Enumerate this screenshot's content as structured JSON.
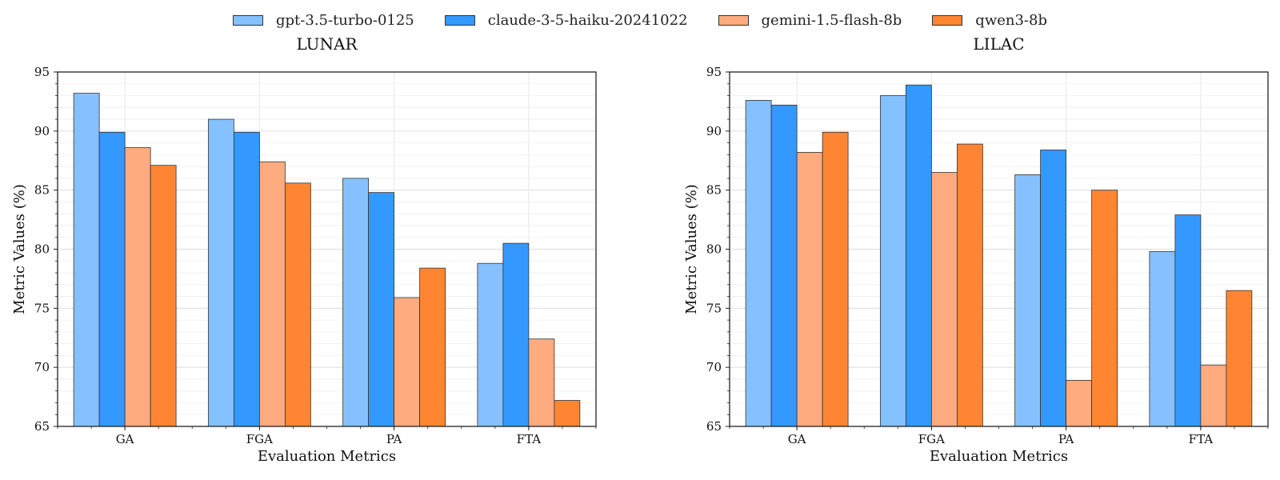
{
  "chart_data": [
    {
      "type": "bar",
      "title": "LUNAR",
      "xlabel": "Evaluation Metrics",
      "ylabel": "Metric Values (%)",
      "ylim": [
        65,
        95
      ],
      "yticks": [
        65,
        70,
        75,
        80,
        85,
        90,
        95
      ],
      "categories": [
        "GA",
        "FGA",
        "PA",
        "FTA"
      ],
      "grid": true,
      "series": [
        {
          "name": "gpt-3.5-turbo-0125",
          "values": [
            93.2,
            91.0,
            86.0,
            78.8
          ]
        },
        {
          "name": "claude-3-5-haiku-20241022",
          "values": [
            89.9,
            89.9,
            84.8,
            80.5
          ]
        },
        {
          "name": "gemini-1.5-flash-8b",
          "values": [
            88.6,
            87.4,
            75.9,
            72.4
          ]
        },
        {
          "name": "qwen3-8b",
          "values": [
            87.1,
            85.6,
            78.4,
            67.2
          ]
        }
      ]
    },
    {
      "type": "bar",
      "title": "LILAC",
      "xlabel": "Evaluation Metrics",
      "ylabel": "Metric Values (%)",
      "ylim": [
        65,
        95
      ],
      "yticks": [
        65,
        70,
        75,
        80,
        85,
        90,
        95
      ],
      "categories": [
        "GA",
        "FGA",
        "PA",
        "FTA"
      ],
      "grid": true,
      "series": [
        {
          "name": "gpt-3.5-turbo-0125",
          "values": [
            92.6,
            93.0,
            86.3,
            79.8
          ]
        },
        {
          "name": "claude-3-5-haiku-20241022",
          "values": [
            92.2,
            93.9,
            88.4,
            82.9
          ]
        },
        {
          "name": "gemini-1.5-flash-8b",
          "values": [
            88.2,
            86.5,
            68.9,
            70.2
          ]
        },
        {
          "name": "qwen3-8b",
          "values": [
            89.9,
            88.9,
            85.0,
            76.5
          ]
        }
      ]
    }
  ],
  "legend": {
    "placement": "top-center",
    "items": [
      {
        "label": "gpt-3.5-turbo-0125",
        "color": "#85c1ff"
      },
      {
        "label": "claude-3-5-haiku-20241022",
        "color": "#3399ff"
      },
      {
        "label": "gemini-1.5-flash-8b",
        "color": "#ffab80"
      },
      {
        "label": "qwen3-8b",
        "color": "#ff8533"
      }
    ]
  }
}
